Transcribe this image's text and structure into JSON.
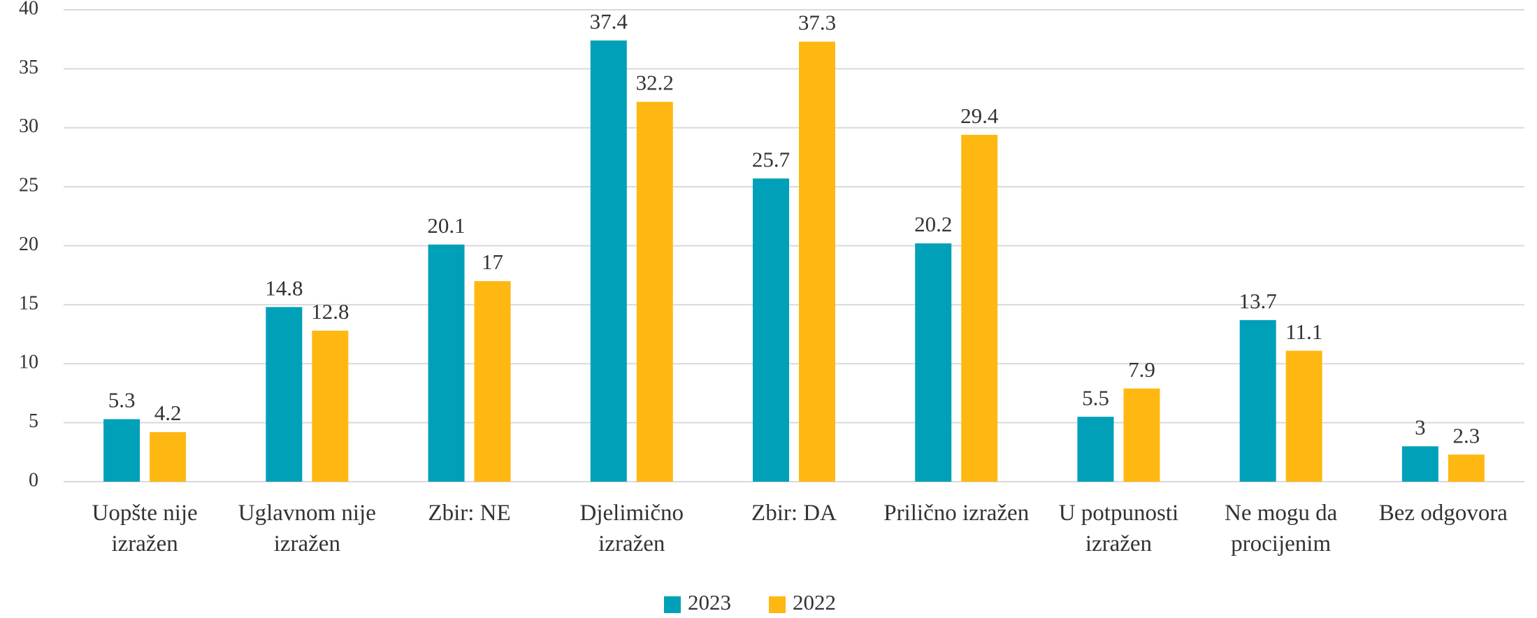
{
  "chart_data": {
    "type": "bar",
    "categories": [
      "Uopšte nije izražen",
      "Uglavnom nije izražen",
      "Zbir: NE",
      "Djelimično izražen",
      "Zbir: DA",
      "Prilično izražen",
      "U potpunosti izražen",
      "Ne mogu da procijenim",
      "Bez odgovora"
    ],
    "series": [
      {
        "name": "2023",
        "color": "#00a0b8",
        "values": [
          5.3,
          14.8,
          20.1,
          37.4,
          25.7,
          20.2,
          5.5,
          13.7,
          3
        ]
      },
      {
        "name": "2022",
        "color": "#ffb812",
        "values": [
          4.2,
          12.8,
          17,
          32.2,
          37.3,
          29.4,
          7.9,
          11.1,
          2.3
        ]
      }
    ],
    "ylim": [
      0,
      40
    ],
    "yticks": [
      0,
      5,
      10,
      15,
      20,
      25,
      30,
      35,
      40
    ],
    "grid": true,
    "legend": "bottom"
  }
}
